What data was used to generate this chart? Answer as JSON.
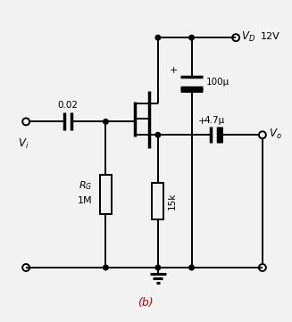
{
  "bg_color": "#f2f2f2",
  "line_color": "black",
  "red_color": "#cc0000",
  "title": "(b)",
  "cap_input_label": "0.02",
  "cap_bypass_label": "100μ",
  "cap_output_label": "4.7μ",
  "RG_label": "R",
  "RG_sub": "G",
  "RG_val": "1M",
  "RS_val": "15k",
  "VD_val": "12V"
}
